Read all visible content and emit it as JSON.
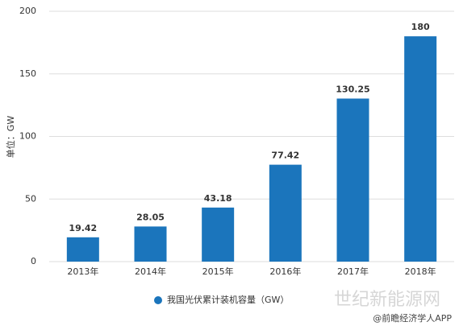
{
  "chart_data": {
    "type": "bar",
    "y_label": "单位：GW",
    "categories": [
      "2013年",
      "2014年",
      "2015年",
      "2016年",
      "2017年",
      "2018年"
    ],
    "series": [
      {
        "name": "我国光伏累计装机容量（GW）",
        "color": "#1b75bc",
        "values": [
          19.42,
          28.05,
          43.18,
          77.42,
          130.25,
          180
        ]
      }
    ],
    "ylim": [
      0,
      200
    ],
    "yticks": [
      0,
      50,
      100,
      150,
      200
    ],
    "grid": true,
    "legend": "bottom"
  },
  "watermark": "世纪新能源网",
  "source": "@前瞻经济学人APP"
}
